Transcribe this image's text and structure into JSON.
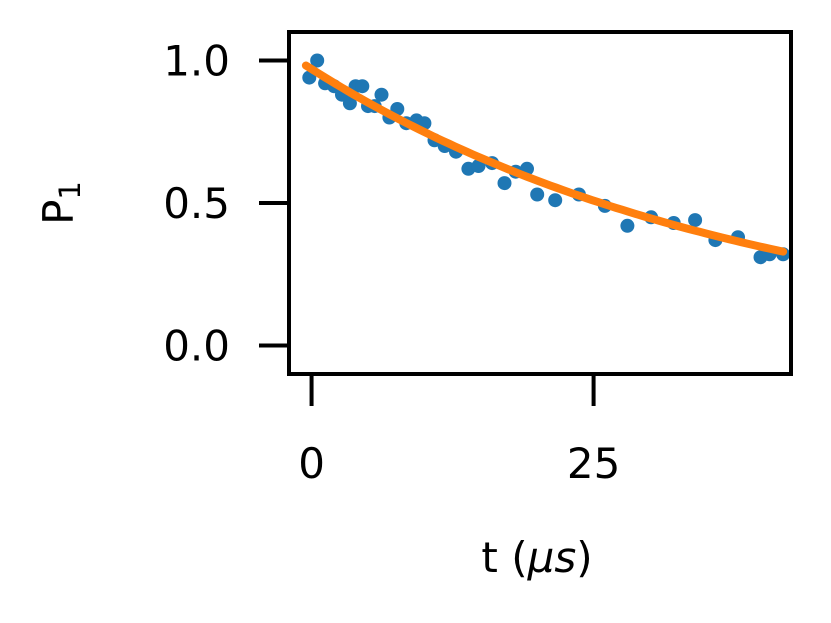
{
  "chart_data": {
    "type": "scatter",
    "title": "",
    "xlabel_main": "t (",
    "xlabel_unit": "μs",
    "xlabel_close": ")",
    "ylabel_main": "P",
    "ylabel_sub": "1",
    "xlim": [
      -2,
      42.5
    ],
    "ylim": [
      -0.1,
      1.1
    ],
    "xticks": [
      0,
      25
    ],
    "yticks": [
      0.0,
      0.5,
      1.0
    ],
    "xtick_labels": [
      "0",
      "25"
    ],
    "ytick_labels": [
      "0.0",
      "0.5",
      "1.0"
    ],
    "grid": false,
    "legend": "none",
    "series": [
      {
        "kind": "scatter",
        "color": "#1f77b4",
        "x": [
          -0.2,
          0.5,
          1.2,
          2.0,
          2.7,
          3.4,
          3.9,
          4.5,
          5.0,
          5.6,
          6.2,
          6.9,
          7.6,
          8.4,
          9.3,
          10.0,
          10.9,
          11.8,
          12.8,
          13.9,
          14.8,
          16.0,
          17.1,
          18.1,
          19.1,
          20.0,
          21.6,
          23.7,
          26.0,
          28.0,
          30.1,
          32.1,
          34.0,
          35.8,
          37.8,
          39.8,
          40.6,
          41.8
        ],
        "y": [
          0.94,
          1.0,
          0.92,
          0.91,
          0.88,
          0.85,
          0.91,
          0.91,
          0.84,
          0.84,
          0.88,
          0.8,
          0.83,
          0.78,
          0.79,
          0.78,
          0.72,
          0.7,
          0.68,
          0.62,
          0.63,
          0.64,
          0.57,
          0.61,
          0.62,
          0.53,
          0.51,
          0.53,
          0.49,
          0.42,
          0.45,
          0.43,
          0.44,
          0.37,
          0.38,
          0.31,
          0.32,
          0.32
        ]
      },
      {
        "kind": "fit-line",
        "color": "#ff7f0e",
        "amplitude": 0.97,
        "decay_time": 38.7
      }
    ]
  }
}
